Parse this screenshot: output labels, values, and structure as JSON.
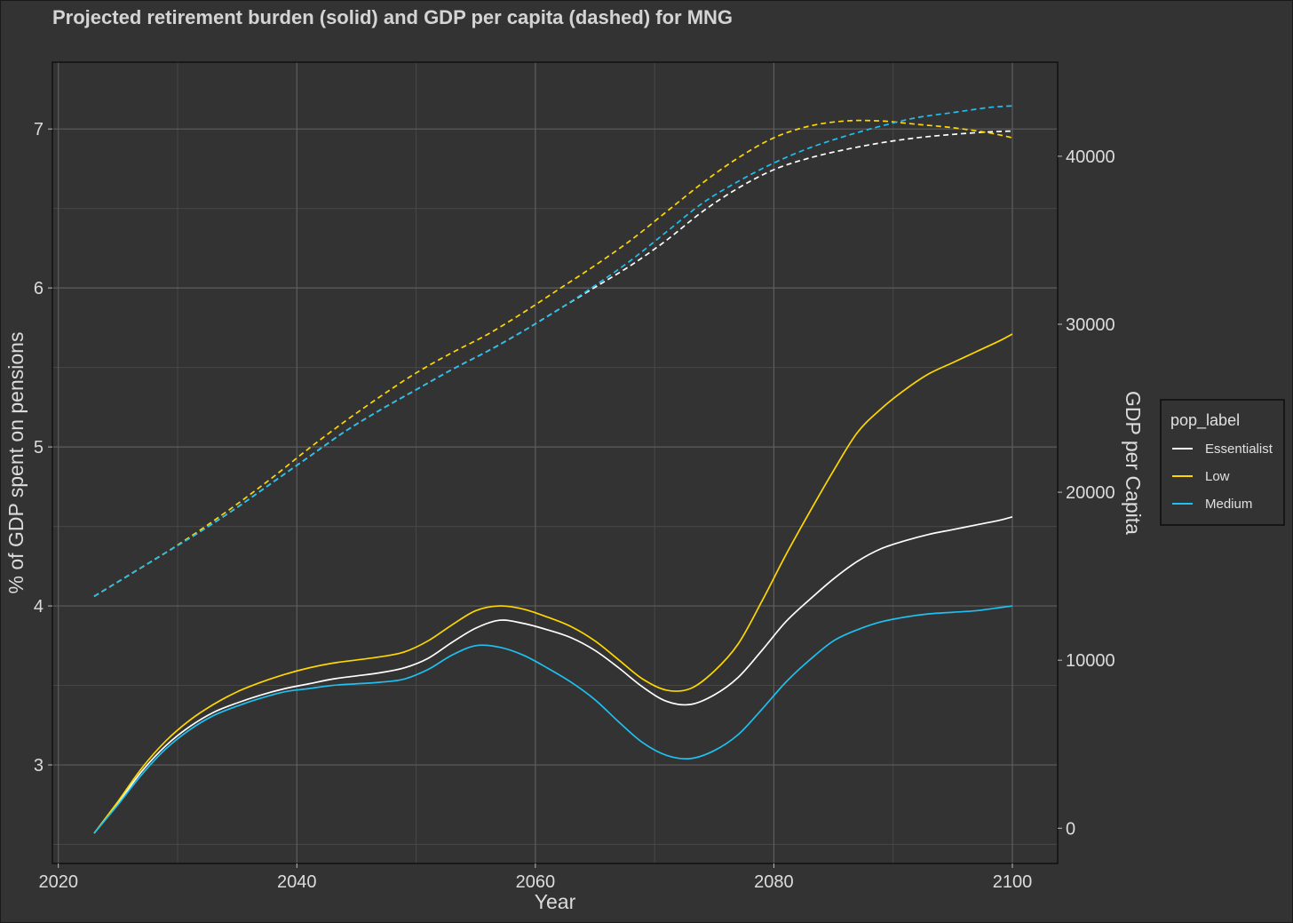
{
  "chart_data": {
    "type": "line",
    "title": "Projected retirement burden (solid) and GDP per capita (dashed) for MNG",
    "xlabel": "Year",
    "ylabel": "% of GDP spent on pensions",
    "y2label": "GDP per Capita",
    "xlim": [
      2019.5,
      2103.8
    ],
    "ylim": [
      2.38,
      7.42
    ],
    "y2lim": [
      -2100,
      45600
    ],
    "x_ticks": [
      2020,
      2040,
      2060,
      2080,
      2100
    ],
    "x_tick_labels": [
      "2020",
      "2040",
      "2060",
      "2080",
      "2100"
    ],
    "y_ticks": [
      3,
      4,
      5,
      6,
      7
    ],
    "y_tick_labels": [
      "3",
      "4",
      "5",
      "6",
      "7"
    ],
    "y2_ticks": [
      0,
      10000,
      20000,
      30000,
      40000
    ],
    "y2_tick_labels": [
      "0",
      "10000",
      "20000",
      "30000",
      "40000"
    ],
    "legend": {
      "title": "pop_label",
      "position": "right",
      "entries": [
        "Essentialist",
        "Low",
        "Medium"
      ]
    },
    "colors": {
      "Essentialist": "#ffffff",
      "Low": "#ffd700",
      "Medium": "#1ec0f0"
    },
    "grid": true,
    "series": [
      {
        "name": "Essentialist",
        "axis": "left",
        "style": "solid",
        "x": [
          2023,
          2025,
          2027,
          2029,
          2031,
          2033,
          2035,
          2037,
          2039,
          2041,
          2043,
          2045,
          2047,
          2049,
          2051,
          2053,
          2055,
          2057,
          2059,
          2061,
          2063,
          2065,
          2067,
          2069,
          2071,
          2073,
          2075,
          2077,
          2079,
          2081,
          2083,
          2085,
          2087,
          2089,
          2091,
          2093,
          2095,
          2097,
          2099,
          2100
        ],
        "y": [
          2.57,
          2.76,
          2.96,
          3.12,
          3.24,
          3.33,
          3.39,
          3.44,
          3.48,
          3.51,
          3.54,
          3.56,
          3.58,
          3.61,
          3.67,
          3.77,
          3.86,
          3.91,
          3.89,
          3.85,
          3.8,
          3.72,
          3.61,
          3.49,
          3.4,
          3.38,
          3.44,
          3.55,
          3.72,
          3.9,
          4.04,
          4.17,
          4.28,
          4.36,
          4.41,
          4.45,
          4.48,
          4.51,
          4.54,
          4.56
        ]
      },
      {
        "name": "Low",
        "axis": "left",
        "style": "solid",
        "x": [
          2023,
          2025,
          2027,
          2029,
          2031,
          2033,
          2035,
          2037,
          2039,
          2041,
          2043,
          2045,
          2047,
          2049,
          2051,
          2053,
          2055,
          2057,
          2059,
          2061,
          2063,
          2065,
          2067,
          2069,
          2071,
          2073,
          2075,
          2077,
          2079,
          2081,
          2083,
          2085,
          2087,
          2089,
          2091,
          2093,
          2095,
          2097,
          2099,
          2100
        ],
        "y": [
          2.57,
          2.77,
          2.98,
          3.15,
          3.28,
          3.38,
          3.46,
          3.52,
          3.57,
          3.61,
          3.64,
          3.66,
          3.68,
          3.71,
          3.78,
          3.88,
          3.97,
          4.0,
          3.98,
          3.93,
          3.87,
          3.78,
          3.66,
          3.54,
          3.47,
          3.48,
          3.59,
          3.76,
          4.03,
          4.32,
          4.59,
          4.85,
          5.09,
          5.24,
          5.36,
          5.46,
          5.53,
          5.6,
          5.67,
          5.71
        ]
      },
      {
        "name": "Medium",
        "axis": "left",
        "style": "solid",
        "x": [
          2023,
          2025,
          2027,
          2029,
          2031,
          2033,
          2035,
          2037,
          2039,
          2041,
          2043,
          2045,
          2047,
          2049,
          2051,
          2053,
          2055,
          2057,
          2059,
          2061,
          2063,
          2065,
          2067,
          2069,
          2071,
          2073,
          2075,
          2077,
          2079,
          2081,
          2083,
          2085,
          2087,
          2089,
          2091,
          2093,
          2095,
          2097,
          2099,
          2100
        ],
        "y": [
          2.57,
          2.75,
          2.94,
          3.1,
          3.22,
          3.31,
          3.37,
          3.42,
          3.46,
          3.48,
          3.5,
          3.51,
          3.52,
          3.54,
          3.6,
          3.69,
          3.75,
          3.74,
          3.69,
          3.61,
          3.52,
          3.41,
          3.27,
          3.14,
          3.06,
          3.04,
          3.09,
          3.19,
          3.35,
          3.52,
          3.66,
          3.78,
          3.85,
          3.9,
          3.93,
          3.95,
          3.96,
          3.97,
          3.99,
          4.0
        ]
      },
      {
        "name": "Essentialist",
        "axis": "right",
        "style": "dashed",
        "x": [
          2023,
          2026,
          2029,
          2032,
          2035,
          2038,
          2041,
          2044,
          2047,
          2050,
          2053,
          2056,
          2059,
          2062,
          2065,
          2068,
          2071,
          2074,
          2077,
          2080,
          2083,
          2086,
          2089,
          2092,
          2095,
          2098,
          2100
        ],
        "y": [
          13800,
          15100,
          16400,
          17700,
          19100,
          20600,
          22100,
          23600,
          24900,
          26100,
          27300,
          28400,
          29600,
          30900,
          32200,
          33500,
          35000,
          36700,
          38100,
          39200,
          39900,
          40400,
          40800,
          41100,
          41300,
          41450,
          41500
        ]
      },
      {
        "name": "Low",
        "axis": "right",
        "style": "dashed",
        "x": [
          2023,
          2026,
          2029,
          2032,
          2035,
          2038,
          2041,
          2044,
          2047,
          2050,
          2053,
          2056,
          2059,
          2062,
          2065,
          2068,
          2071,
          2074,
          2077,
          2080,
          2083,
          2086,
          2089,
          2092,
          2095,
          2098,
          2100
        ],
        "y": [
          13800,
          15100,
          16400,
          17800,
          19300,
          20900,
          22600,
          24200,
          25700,
          27100,
          28300,
          29400,
          30700,
          32100,
          33500,
          35000,
          36700,
          38400,
          39900,
          41100,
          41800,
          42100,
          42100,
          41900,
          41700,
          41400,
          41100
        ]
      },
      {
        "name": "Medium",
        "axis": "right",
        "style": "dashed",
        "x": [
          2023,
          2026,
          2029,
          2032,
          2035,
          2038,
          2041,
          2044,
          2047,
          2050,
          2053,
          2056,
          2059,
          2062,
          2065,
          2068,
          2071,
          2074,
          2077,
          2080,
          2083,
          2086,
          2089,
          2092,
          2095,
          2098,
          2100
        ],
        "y": [
          13800,
          15100,
          16400,
          17700,
          19100,
          20600,
          22100,
          23600,
          24900,
          26100,
          27300,
          28400,
          29600,
          30900,
          32300,
          33800,
          35500,
          37200,
          38500,
          39600,
          40500,
          41200,
          41800,
          42300,
          42600,
          42900,
          43000
        ]
      }
    ]
  }
}
